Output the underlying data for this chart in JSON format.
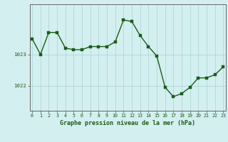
{
  "x": [
    0,
    1,
    2,
    3,
    4,
    5,
    6,
    7,
    8,
    9,
    10,
    11,
    12,
    13,
    14,
    15,
    16,
    17,
    18,
    19,
    20,
    21,
    22,
    23
  ],
  "y": [
    1023.5,
    1023.0,
    1023.7,
    1023.7,
    1023.2,
    1023.15,
    1023.15,
    1023.25,
    1023.25,
    1023.25,
    1023.4,
    1024.1,
    1024.05,
    1023.6,
    1023.25,
    1022.95,
    1021.95,
    1021.65,
    1021.75,
    1021.95,
    1022.25,
    1022.25,
    1022.35,
    1022.6
  ],
  "line_color": "#1a5c1a",
  "marker_color": "#1a5c1a",
  "bg_color": "#d4efef",
  "grid_color": "#b0d8d8",
  "xlabel": "Graphe pression niveau de la mer (hPa)",
  "xlabel_fontsize": 6.0,
  "ytick_labels": [
    "1022",
    "1023"
  ],
  "ytick_vals": [
    1022.0,
    1023.0
  ],
  "ylim": [
    1021.2,
    1024.6
  ],
  "xlim": [
    -0.3,
    23.3
  ],
  "xtick_vals": [
    0,
    1,
    2,
    3,
    4,
    5,
    6,
    7,
    8,
    9,
    10,
    11,
    12,
    13,
    14,
    15,
    16,
    17,
    18,
    19,
    20,
    21,
    22,
    23
  ],
  "axis_color": "#666666",
  "tick_fontsize": 4.8,
  "marker_size": 2.5,
  "line_width": 1.0
}
